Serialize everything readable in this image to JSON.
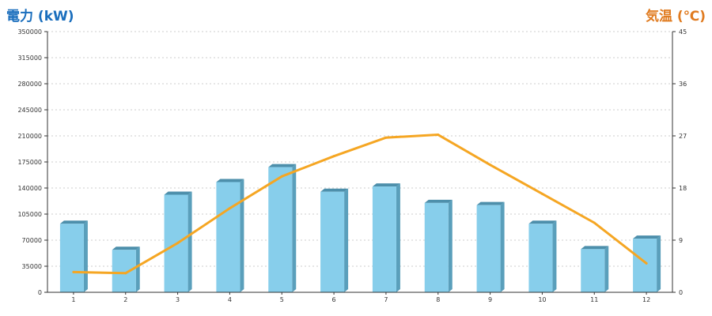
{
  "chart_data": {
    "type": "bar",
    "categories": [
      "1",
      "2",
      "3",
      "4",
      "5",
      "6",
      "7",
      "8",
      "9",
      "10",
      "11",
      "12"
    ],
    "series": [
      {
        "type": "bar",
        "axis": "left",
        "values": [
          92000,
          57000,
          131000,
          148000,
          168000,
          135000,
          142000,
          120000,
          117000,
          92000,
          58000,
          72000
        ]
      },
      {
        "type": "line",
        "axis": "right",
        "values": [
          3.5,
          3.3,
          8.5,
          14.5,
          20.0,
          23.5,
          26.7,
          27.2,
          22.0,
          17.0,
          12.0,
          5.0
        ]
      }
    ],
    "ylabel": "電力 (kW)",
    "y2label": "気温 (℃)",
    "ylim": [
      0,
      350000
    ],
    "y2lim": [
      0,
      45
    ],
    "yticks": [
      "0",
      "35000",
      "70000",
      "105000",
      "140000",
      "175000",
      "210000",
      "245000",
      "280000",
      "315000",
      "350000"
    ],
    "y2ticks": [
      "0",
      "9",
      "18",
      "27",
      "36",
      "45"
    ],
    "grid": true,
    "colors": {
      "bar_front": "#87ceeb",
      "bar_side": "#5a9fbb",
      "bar_top": "#4d8fab",
      "line": "#f5a623",
      "left_title": "#1a6ebd",
      "right_title": "#e07b20",
      "grid": "#cccccc",
      "axis": "#333333"
    }
  }
}
